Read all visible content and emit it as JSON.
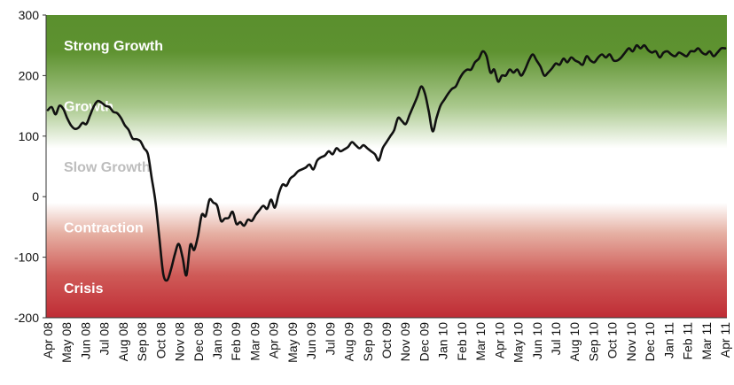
{
  "chart_data": {
    "type": "line",
    "title": "",
    "xlabel": "",
    "ylabel": "",
    "ylim": [
      -200,
      300
    ],
    "yticks": [
      -200,
      -100,
      0,
      100,
      200,
      300
    ],
    "grid": false,
    "legend": "none",
    "categories": [
      "Apr 08",
      "May 08",
      "Jun 08",
      "Jul 08",
      "Aug 08",
      "Sep 08",
      "Oct 08",
      "Nov 08",
      "Dec 08",
      "Jan 09",
      "Feb 09",
      "Mar 09",
      "Apr 09",
      "May 09",
      "Jun 09",
      "Jul 09",
      "Aug 09",
      "Sep 09",
      "Oct 09",
      "Nov 09",
      "Dec 09",
      "Jan 10",
      "Feb 10",
      "Mar 10",
      "Apr 10",
      "May 10",
      "Jun 10",
      "Jul 10",
      "Aug 10",
      "Sep 10",
      "Oct 10",
      "Nov 10",
      "Dec 10",
      "Jan 11",
      "Feb 11",
      "Mar 11",
      "Apr 11"
    ],
    "zones": [
      {
        "label": "Strong Growth",
        "at": 250,
        "color": "#ffffff"
      },
      {
        "label": "Growth",
        "at": 150,
        "color": "#ffffff"
      },
      {
        "label": "Slow Growth",
        "at": 50,
        "color": "#bdbdbd"
      },
      {
        "label": "Contraction",
        "at": -50,
        "color": "#ffffff"
      },
      {
        "label": "Crisis",
        "at": -150,
        "color": "#ffffff"
      }
    ],
    "band_colors": {
      "top": "#5a8f2e",
      "mid": "#ffffff",
      "bottom": "#c0303a"
    },
    "line_color": "#111111",
    "series": [
      {
        "name": "",
        "points": [
          [
            0,
            143
          ],
          [
            0.25,
            148
          ],
          [
            0.5,
            136
          ],
          [
            0.75,
            150
          ],
          [
            1,
            145
          ],
          [
            1.25,
            130
          ],
          [
            1.5,
            118
          ],
          [
            1.75,
            112
          ],
          [
            2,
            114
          ],
          [
            2.25,
            122
          ],
          [
            2.5,
            120
          ],
          [
            2.75,
            135
          ],
          [
            3,
            150
          ],
          [
            3.25,
            158
          ],
          [
            3.5,
            155
          ],
          [
            3.75,
            150
          ],
          [
            4,
            148
          ],
          [
            4.25,
            140
          ],
          [
            4.5,
            138
          ],
          [
            4.75,
            130
          ],
          [
            5,
            118
          ],
          [
            5.25,
            110
          ],
          [
            5.5,
            96
          ],
          [
            5.75,
            95
          ],
          [
            6,
            92
          ],
          [
            6.25,
            80
          ],
          [
            6.5,
            70
          ],
          [
            6.75,
            30
          ],
          [
            7,
            -10
          ],
          [
            7.25,
            -70
          ],
          [
            7.5,
            -128
          ],
          [
            7.75,
            -138
          ],
          [
            8,
            -120
          ],
          [
            8.25,
            -95
          ],
          [
            8.5,
            -78
          ],
          [
            8.75,
            -100
          ],
          [
            9,
            -130
          ],
          [
            9.25,
            -80
          ],
          [
            9.5,
            -88
          ],
          [
            9.75,
            -65
          ],
          [
            10,
            -30
          ],
          [
            10.25,
            -32
          ],
          [
            10.5,
            -5
          ],
          [
            10.75,
            -10
          ],
          [
            11,
            -15
          ],
          [
            11.25,
            -40
          ],
          [
            11.5,
            -36
          ],
          [
            11.75,
            -35
          ],
          [
            12,
            -25
          ],
          [
            12.25,
            -45
          ],
          [
            12.5,
            -42
          ],
          [
            12.75,
            -48
          ],
          [
            13,
            -38
          ],
          [
            13.25,
            -40
          ],
          [
            13.5,
            -30
          ],
          [
            13.75,
            -22
          ],
          [
            14,
            -15
          ],
          [
            14.25,
            -20
          ],
          [
            14.5,
            -5
          ],
          [
            14.75,
            -18
          ],
          [
            15,
            5
          ],
          [
            15.25,
            20
          ],
          [
            15.5,
            18
          ],
          [
            15.75,
            30
          ],
          [
            16,
            35
          ],
          [
            16.25,
            42
          ],
          [
            16.5,
            45
          ],
          [
            16.75,
            48
          ],
          [
            17,
            53
          ],
          [
            17.25,
            45
          ],
          [
            17.5,
            60
          ],
          [
            17.75,
            65
          ],
          [
            18,
            68
          ],
          [
            18.25,
            75
          ],
          [
            18.5,
            70
          ],
          [
            18.75,
            80
          ],
          [
            19,
            75
          ],
          [
            19.25,
            78
          ],
          [
            19.5,
            82
          ],
          [
            19.75,
            90
          ],
          [
            20,
            85
          ],
          [
            20.25,
            80
          ],
          [
            20.5,
            85
          ],
          [
            20.75,
            80
          ],
          [
            21,
            75
          ],
          [
            21.25,
            70
          ],
          [
            21.5,
            60
          ],
          [
            21.75,
            80
          ],
          [
            22,
            90
          ],
          [
            22.25,
            100
          ],
          [
            22.5,
            110
          ],
          [
            22.75,
            130
          ],
          [
            23,
            125
          ],
          [
            23.25,
            120
          ],
          [
            23.5,
            135
          ],
          [
            23.75,
            150
          ],
          [
            24,
            165
          ],
          [
            24.25,
            182
          ],
          [
            24.5,
            170
          ],
          [
            24.75,
            140
          ],
          [
            25,
            108
          ],
          [
            25.25,
            130
          ],
          [
            25.5,
            150
          ],
          [
            25.75,
            160
          ],
          [
            26,
            170
          ],
          [
            26.25,
            178
          ],
          [
            26.5,
            182
          ],
          [
            26.75,
            195
          ],
          [
            27,
            205
          ],
          [
            27.25,
            210
          ],
          [
            27.5,
            210
          ],
          [
            27.75,
            222
          ],
          [
            28,
            228
          ],
          [
            28.25,
            240
          ],
          [
            28.5,
            232
          ],
          [
            28.75,
            205
          ],
          [
            29,
            210
          ],
          [
            29.25,
            190
          ],
          [
            29.5,
            200
          ],
          [
            29.75,
            200
          ],
          [
            30,
            210
          ],
          [
            30.25,
            205
          ],
          [
            30.5,
            210
          ],
          [
            30.75,
            200
          ],
          [
            31,
            210
          ],
          [
            31.25,
            225
          ],
          [
            31.5,
            235
          ],
          [
            31.75,
            225
          ],
          [
            32,
            215
          ],
          [
            32.25,
            200
          ],
          [
            32.5,
            205
          ],
          [
            32.75,
            212
          ],
          [
            33,
            220
          ],
          [
            33.25,
            218
          ],
          [
            33.5,
            228
          ],
          [
            33.75,
            222
          ],
          [
            34,
            230
          ],
          [
            34.25,
            225
          ],
          [
            34.5,
            222
          ],
          [
            34.75,
            218
          ],
          [
            35,
            232
          ],
          [
            35.25,
            225
          ],
          [
            35.5,
            222
          ],
          [
            35.75,
            230
          ],
          [
            36,
            235
          ],
          [
            36.25,
            230
          ],
          [
            36.5,
            235
          ],
          [
            36.75,
            225
          ],
          [
            37,
            225
          ],
          [
            37.25,
            230
          ],
          [
            37.5,
            238
          ],
          [
            37.75,
            245
          ],
          [
            38,
            240
          ],
          [
            38.25,
            250
          ],
          [
            38.5,
            245
          ],
          [
            38.75,
            250
          ],
          [
            39,
            242
          ],
          [
            39.25,
            238
          ],
          [
            39.5,
            240
          ],
          [
            39.75,
            230
          ],
          [
            40,
            238
          ],
          [
            40.25,
            240
          ],
          [
            40.5,
            235
          ],
          [
            40.75,
            232
          ],
          [
            41,
            238
          ],
          [
            41.25,
            235
          ],
          [
            41.5,
            232
          ],
          [
            41.75,
            240
          ],
          [
            42,
            240
          ],
          [
            42.25,
            245
          ],
          [
            42.5,
            238
          ],
          [
            42.75,
            235
          ],
          [
            43,
            240
          ],
          [
            43.25,
            232
          ],
          [
            43.5,
            238
          ],
          [
            43.75,
            245
          ],
          [
            44,
            245
          ]
        ]
      }
    ]
  }
}
